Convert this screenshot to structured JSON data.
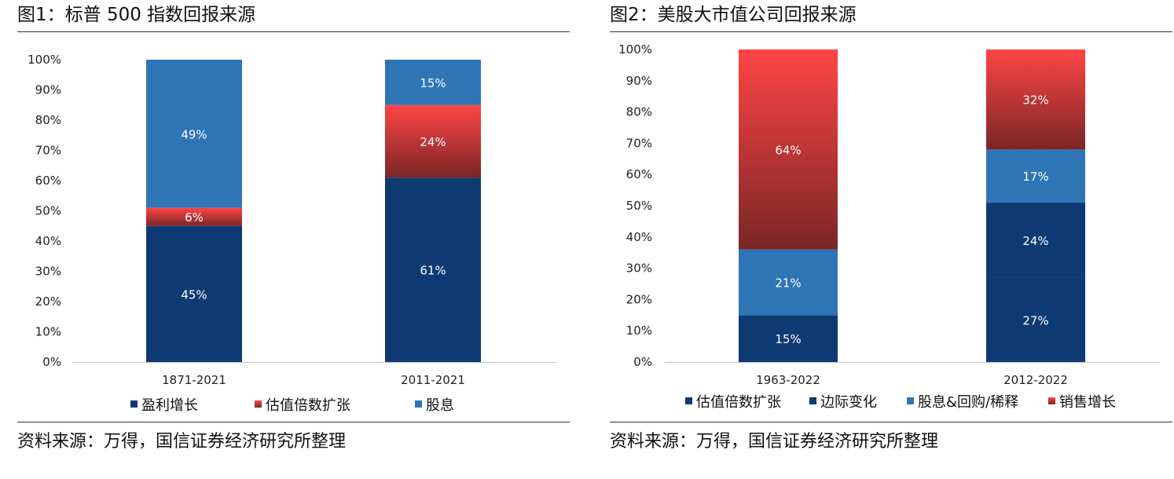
{
  "colors": {
    "dark_blue": "#0d3a73",
    "mid_blue": "#2e75b6",
    "red_top": "#ff4545",
    "red_bottom": "#7a2626",
    "axis": "#bfbfbf"
  },
  "chart_data": [
    {
      "type": "bar",
      "stacked": true,
      "title": "图1：标普 500 指数回报来源",
      "source": "资料来源：万得，国信证券经济研究所整理",
      "categories": [
        "1871-2021",
        "2011-2021"
      ],
      "ylim": [
        0,
        100
      ],
      "yticks": [
        "0%",
        "10%",
        "20%",
        "30%",
        "40%",
        "50%",
        "60%",
        "70%",
        "80%",
        "90%",
        "100%"
      ],
      "legend_position": "bottom",
      "series": [
        {
          "name": "盈利增长",
          "values": [
            45,
            61
          ],
          "labels": [
            "45%",
            "61%"
          ],
          "color": "dark_blue"
        },
        {
          "name": "估值倍数扩张",
          "values": [
            6,
            24
          ],
          "labels": [
            "6%",
            "24%"
          ],
          "color": "red"
        },
        {
          "name": "股息",
          "values": [
            49,
            15
          ],
          "labels": [
            "49%",
            "15%"
          ],
          "color": "mid_blue"
        }
      ]
    },
    {
      "type": "bar",
      "stacked": true,
      "title": "图2：美股大市值公司回报来源",
      "source": "资料来源：万得，国信证券经济研究所整理",
      "categories": [
        "1963-2022",
        "2012-2022"
      ],
      "ylim": [
        0,
        100
      ],
      "yticks": [
        "0%",
        "10%",
        "20%",
        "30%",
        "40%",
        "50%",
        "60%",
        "70%",
        "80%",
        "90%",
        "100%"
      ],
      "legend_position": "bottom",
      "series": [
        {
          "name": "估值倍数扩张",
          "values": [
            15,
            27
          ],
          "labels": [
            "15%",
            "27%"
          ],
          "color": "dark_blue"
        },
        {
          "name": "边际变化",
          "values": [
            0,
            24
          ],
          "labels": [
            "",
            "24%"
          ],
          "color": "navy"
        },
        {
          "name": "股息&回购/稀释",
          "values": [
            21,
            17
          ],
          "labels": [
            "21%",
            "17%"
          ],
          "color": "mid_blue"
        },
        {
          "name": "销售增长",
          "values": [
            64,
            32
          ],
          "labels": [
            "64%",
            "32%"
          ],
          "color": "red"
        }
      ]
    }
  ]
}
